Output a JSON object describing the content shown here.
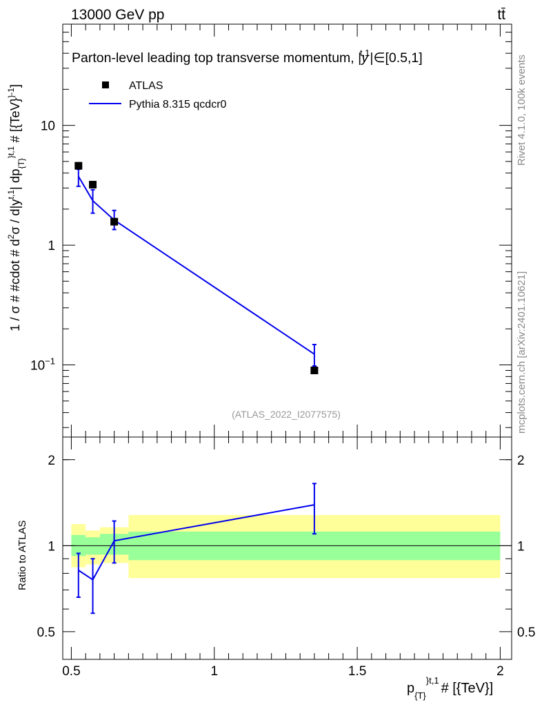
{
  "header": {
    "energy_label": "13000 GeV pp",
    "process_label": "tt̄"
  },
  "side_labels": {
    "rivet": "Rivet 4.1.0,  100k events",
    "source": "mcplots.cern.ch [arXiv:2401.10621]"
  },
  "colors": {
    "data_marker": "#000000",
    "mc_line": "#0000ee",
    "band_inner": "#99ff99",
    "band_outer": "#ffff99"
  },
  "chart_data": [
    {
      "type": "line",
      "title": "Parton-level leading top transverse momentum, |y^{t,1}| ∈ [0.5,1]",
      "title_main": "Parton-level leading top transverse momentum, |",
      "title_var": "y",
      "title_sup": "t,1",
      "title_end": "|∈[0.5,1]",
      "ylabel": "1 / σ # #cdot # d²σ / d|y^{t,1}| dp_{T}^{t,1} # [{TeV}^{-1}]",
      "ylabel_text": "1 / σ # #cdot # d",
      "ylabel_text2": "σ / d|y",
      "ylabel_text3": "| dp",
      "ylabel_text4": " # [{TeV}",
      "ylabel_text5": "]",
      "ylabel_sup_2": "2",
      "ylabel_sup_t1": "t,1",
      "ylabel_sub_T": "{T}",
      "ylabel_sup_end": "}",
      "ylabel_sup_m1": "-1",
      "yscale": "log",
      "ylim": [
        0.025,
        70
      ],
      "xlim": [
        0.47,
        2.04
      ],
      "y_ticks": [
        {
          "value": 10,
          "label": "10"
        },
        {
          "value": 1,
          "label": "1"
        },
        {
          "value": 0.1,
          "label": "10",
          "exp": "−1"
        }
      ],
      "watermark": "(ATLAS_2022_I2077575)",
      "legend": [
        {
          "name": "ATLAS",
          "kind": "marker"
        },
        {
          "name": "Pythia 8.315 qcdcr0",
          "kind": "line"
        }
      ],
      "legend_position": "top-left",
      "series": [
        {
          "name": "ATLAS",
          "x": [
            0.525,
            0.575,
            0.65,
            1.35
          ],
          "y": [
            4.6,
            3.2,
            1.57,
            0.09
          ]
        },
        {
          "name": "Pythia 8.315 qcdcr0",
          "x": [
            0.525,
            0.575,
            0.65,
            1.35
          ],
          "y": [
            3.75,
            2.35,
            1.62,
            0.123
          ],
          "err_low": [
            3.1,
            1.85,
            1.35,
            0.098
          ],
          "err_high": [
            4.3,
            2.9,
            1.95,
            0.148
          ]
        }
      ]
    },
    {
      "type": "line",
      "ylabel": "Ratio to ATLAS",
      "xlabel": "p_{T}^{t,1} # [{TeV}]",
      "xlabel_main": "p",
      "xlabel_sub": "{T}",
      "xlabel_sup": "}",
      "xlabel_sup2": "t,1",
      "xlabel_end": "# [{TeV}]",
      "xlim": [
        0.47,
        2.04
      ],
      "ylim": [
        0.4,
        2.4
      ],
      "yscale": "log",
      "x_ticks": [
        {
          "value": 0.5,
          "label": "0.5"
        },
        {
          "value": 1,
          "label": "1"
        },
        {
          "value": 1.5,
          "label": "1.5"
        },
        {
          "value": 2,
          "label": "2"
        }
      ],
      "y_ticks": [
        {
          "value": 2,
          "label": "2"
        },
        {
          "value": 1,
          "label": "1"
        },
        {
          "value": 0.5,
          "label": "0.5"
        }
      ],
      "bands": [
        {
          "x0": 0.5,
          "x1": 0.55,
          "inner_lo": 0.92,
          "inner_hi": 1.09,
          "outer_lo": 0.84,
          "outer_hi": 1.19
        },
        {
          "x0": 0.55,
          "x1": 0.6,
          "inner_lo": 0.93,
          "inner_hi": 1.07,
          "outer_lo": 0.86,
          "outer_hi": 1.13
        },
        {
          "x0": 0.6,
          "x1": 0.7,
          "inner_lo": 0.93,
          "inner_hi": 1.1,
          "outer_lo": 0.87,
          "outer_hi": 1.16
        },
        {
          "x0": 0.7,
          "x1": 2.0,
          "inner_lo": 0.89,
          "inner_hi": 1.12,
          "outer_lo": 0.77,
          "outer_hi": 1.28
        }
      ],
      "series": [
        {
          "name": "Pythia 8.315 qcdcr0 / ATLAS",
          "x": [
            0.525,
            0.575,
            0.65,
            1.35
          ],
          "y": [
            0.82,
            0.76,
            1.04,
            1.39
          ],
          "err_low": [
            0.66,
            0.58,
            0.87,
            1.1
          ],
          "err_high": [
            0.94,
            0.9,
            1.22,
            1.65
          ]
        }
      ]
    }
  ]
}
